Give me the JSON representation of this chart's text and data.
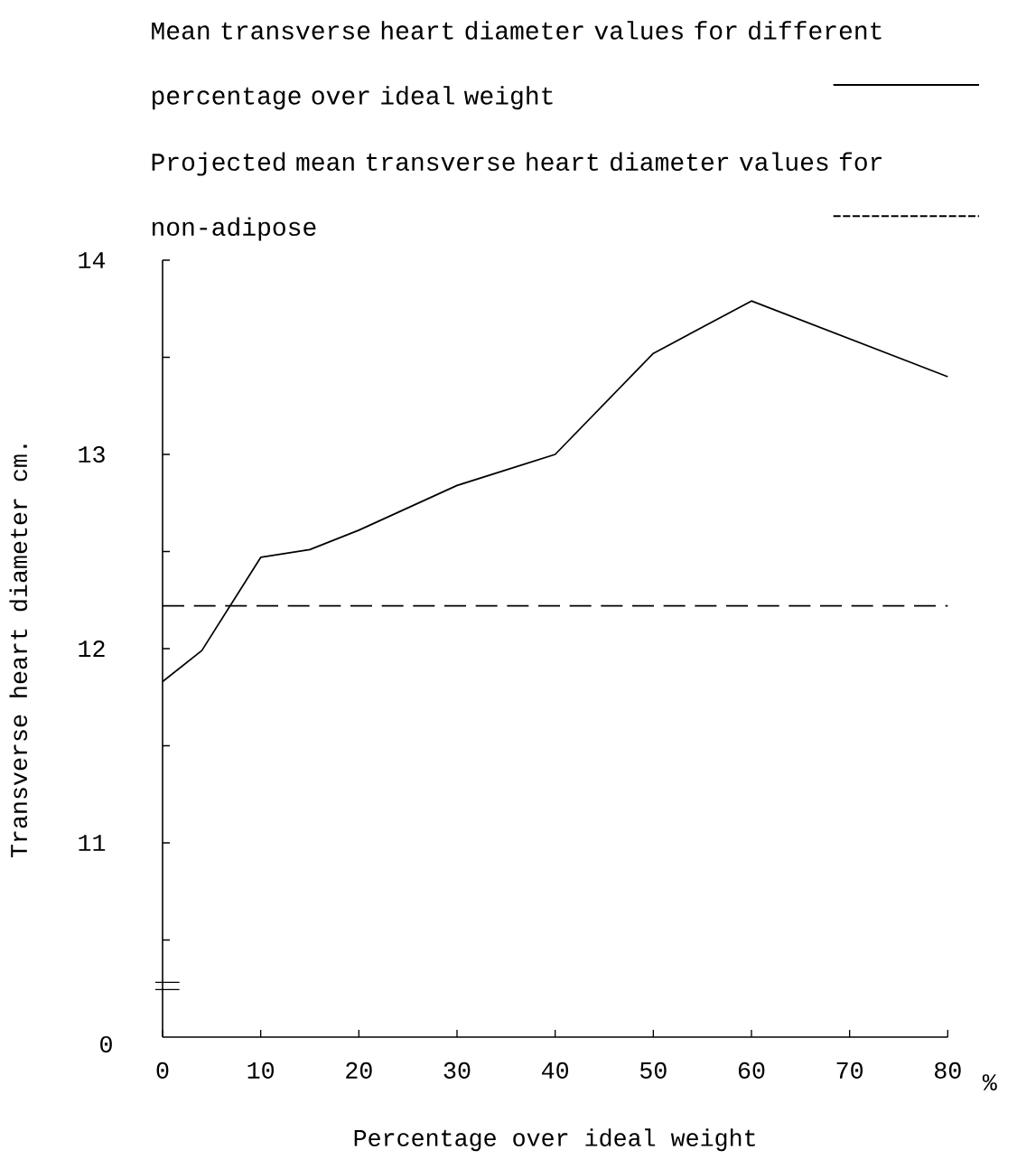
{
  "chart_data": {
    "type": "line",
    "xlabel": "Percentage over ideal weight",
    "ylabel": "Transverse heart diameter  cm.",
    "xlim": [
      0,
      80
    ],
    "xticks": [
      0,
      10,
      20,
      30,
      40,
      50,
      60,
      70,
      80
    ],
    "ylim": [
      10,
      14
    ],
    "yticks": [
      {
        "value": 10.5,
        "label": null
      },
      11,
      {
        "value": 11.5,
        "label": null
      },
      12,
      {
        "value": 12.5,
        "label": null
      },
      13,
      {
        "value": 13.5,
        "label": null
      },
      14
    ],
    "series": [
      {
        "name": "Mean transverse heart diameter values for different percentage over ideal weight",
        "color": "#000000",
        "line_style": "solid",
        "x": [
          0,
          4,
          10,
          15,
          20,
          30,
          40,
          50,
          60,
          80
        ],
        "values": [
          11.83,
          11.99,
          12.47,
          12.51,
          12.61,
          12.84,
          13.0,
          13.52,
          13.79,
          13.4
        ]
      },
      {
        "name": "Projected mean transverse heart diameter values for non-adipose",
        "color": "#000000",
        "line_style": "dashed",
        "x": [
          0,
          80
        ],
        "values": [
          12.22,
          12.22
        ]
      }
    ],
    "annotations": [
      "0",
      "%"
    ]
  }
}
